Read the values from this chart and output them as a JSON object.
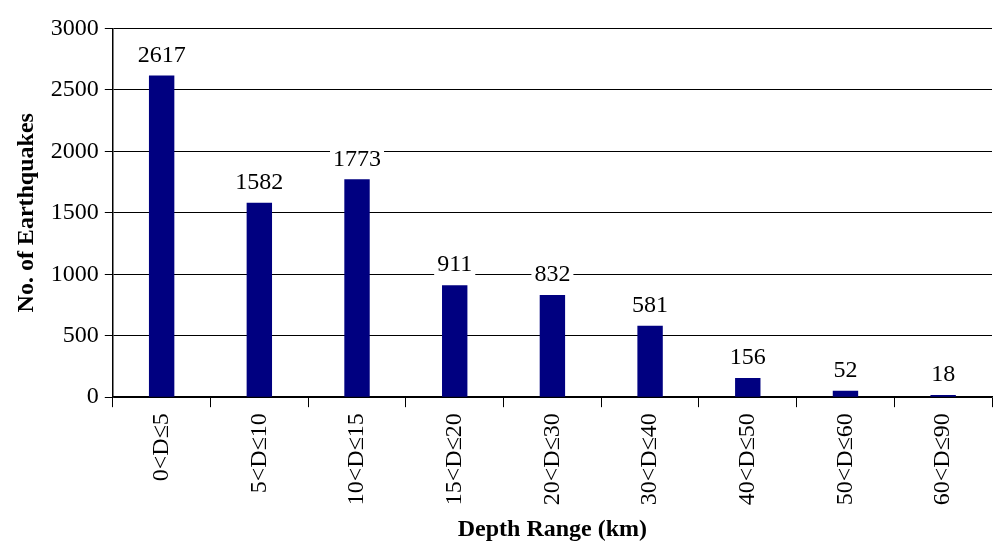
{
  "chart_data": {
    "type": "bar",
    "xlabel": "Depth Range (km)",
    "ylabel": "No. of Earthquakes",
    "categories": [
      "0<D≤5",
      "5<D≤10",
      "10<D≤15",
      "15<D≤20",
      "20<D≤30",
      "30<D≤40",
      "40<D≤50",
      "50<D≤60",
      "60<D≤90"
    ],
    "values": [
      2617,
      1582,
      1773,
      911,
      832,
      581,
      156,
      52,
      18
    ],
    "color": "#000080",
    "ylim": [
      0,
      3000
    ],
    "yticks": [
      0,
      500,
      1000,
      1500,
      2000,
      2500,
      3000
    ],
    "grid": "y",
    "data_labels": true,
    "legend": false
  }
}
